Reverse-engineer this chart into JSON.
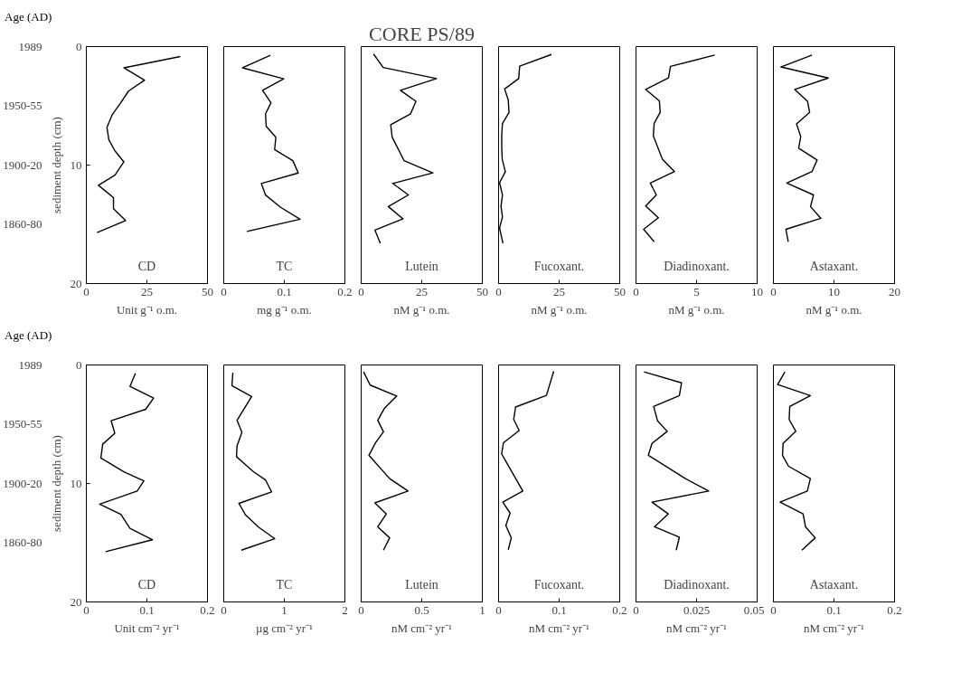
{
  "chart_data": [
    {
      "type": "line",
      "xlabel": "Unit g⁻¹ o.m.",
      "ylabel": "sediment depth (cm)",
      "y2label": "Age (AD)",
      "annotations": [
        "CD",
        "1989",
        "1950-55",
        "1900-20",
        "1860-80"
      ],
      "xlim": [
        0,
        50
      ],
      "xticks": [
        0,
        25,
        50
      ],
      "ylim": [
        20,
        0
      ],
      "yticks": [
        0,
        10,
        20
      ],
      "series": [
        {
          "color": "#000000",
          "x": [
            38.8,
            15.5,
            24,
            17.4,
            14,
            10.6,
            8.5,
            9.3,
            11.8,
            15.5,
            11.8,
            5,
            11.2,
            11.2,
            16.2,
            4.4
          ],
          "values": [
            0.84,
            1.79,
            2.83,
            3.76,
            4.8,
            5.78,
            6.83,
            7.87,
            8.8,
            9.73,
            10.85,
            11.71,
            12.75,
            13.68,
            14.68,
            15.7
          ]
        }
      ]
    },
    {
      "type": "line",
      "xlabel": "mg g⁻¹ o.m.",
      "annotations": [
        "TC"
      ],
      "xlim": [
        0,
        0.2
      ],
      "xticks": [
        0,
        0.1,
        0.2
      ],
      "ylim": [
        20,
        0
      ],
      "tick_labels": "x",
      "series": [
        {
          "color": "#000000",
          "x": [
            0.077,
            0.031,
            0.099,
            0.064,
            0.078,
            0.069,
            0.07,
            0.086,
            0.084,
            0.114,
            0.123,
            0.062,
            0.069,
            0.094,
            0.126,
            0.038
          ],
          "values": [
            0.74,
            1.79,
            2.72,
            3.69,
            4.74,
            5.67,
            6.72,
            7.65,
            8.7,
            9.63,
            10.67,
            11.55,
            12.53,
            13.57,
            14.57,
            15.6
          ]
        }
      ]
    },
    {
      "type": "line",
      "title": "CORE PS/89",
      "xlabel": "nM g⁻¹ o.m.",
      "annotations": [
        "Lutein"
      ],
      "xlim": [
        0,
        50
      ],
      "xticks": [
        0,
        25,
        50
      ],
      "ylim": [
        20,
        0
      ],
      "tick_labels": "x",
      "series": [
        {
          "color": "#000000",
          "x": [
            5.1,
            9.1,
            31.1,
            16.2,
            22.6,
            20.4,
            12.2,
            12.8,
            17.7,
            29.6,
            13,
            19.5,
            11.2,
            17.3,
            5.7,
            7.9
          ],
          "values": [
            0.63,
            1.77,
            2.7,
            3.69,
            4.62,
            5.67,
            6.6,
            7.64,
            9.62,
            10.66,
            11.55,
            12.52,
            13.5,
            14.54,
            15.49,
            16.6
          ]
        }
      ]
    },
    {
      "type": "line",
      "xlabel": "nM g⁻¹ o.m.",
      "annotations": [
        "Fucoxant."
      ],
      "xlim": [
        0,
        50
      ],
      "xticks": [
        0,
        25,
        50
      ],
      "ylim": [
        20,
        0
      ],
      "tick_labels": "x",
      "series": [
        {
          "color": "#000000",
          "x": [
            21.8,
            8.7,
            8.3,
            2.5,
            4,
            4.3,
            1.6,
            1.3,
            1.3,
            1.5,
            2.8,
            0.4,
            1.6,
            1,
            1.6,
            0.4,
            1.8
          ],
          "values": [
            0.67,
            1.65,
            2.7,
            3.58,
            4.51,
            5.56,
            6.49,
            7.42,
            8.47,
            9.51,
            10.56,
            11.49,
            12.53,
            13.46,
            14.39,
            15.32,
            16.6
          ]
        }
      ]
    },
    {
      "type": "line",
      "xlabel": "nM g⁻¹ o.m.",
      "annotations": [
        "Diadinoxant."
      ],
      "xlim": [
        0,
        10
      ],
      "xticks": [
        0,
        5,
        10
      ],
      "ylim": [
        20,
        0
      ],
      "tick_labels": "x",
      "series": [
        {
          "color": "#000000",
          "x": [
            6.5,
            2.85,
            2.68,
            0.8,
            1.93,
            2,
            1.5,
            1.43,
            2.18,
            3.18,
            1.18,
            1.68,
            0.8,
            1.85,
            0.63,
            1.5
          ],
          "values": [
            0.72,
            1.67,
            2.65,
            3.62,
            4.58,
            5.55,
            6.48,
            7.53,
            9.5,
            10.55,
            11.52,
            12.52,
            13.45,
            14.45,
            15.42,
            16.47
          ]
        }
      ]
    },
    {
      "type": "line",
      "xlabel": "nM g⁻¹ o.m.",
      "annotations": [
        "Astaxant."
      ],
      "xlim": [
        0,
        20
      ],
      "xticks": [
        0,
        10,
        20
      ],
      "ylim": [
        20,
        0
      ],
      "tick_labels": "x",
      "series": [
        {
          "color": "#000000",
          "x": [
            6.37,
            1.23,
            9.07,
            3.53,
            5.64,
            5.98,
            3.82,
            4.51,
            4.17,
            7.21,
            6.37,
            2.21,
            6.62,
            6.13,
            7.84,
            2.06,
            2.45
          ],
          "values": [
            0.72,
            1.72,
            2.65,
            3.62,
            4.62,
            5.55,
            6.53,
            7.6,
            8.58,
            9.57,
            10.55,
            11.52,
            12.52,
            13.5,
            14.5,
            15.42,
            16.47
          ]
        }
      ]
    },
    {
      "type": "line",
      "xlabel": "Unit cm⁻² yr⁻¹",
      "ylabel": "sediment depth (cm)",
      "y2label": "Age (AD)",
      "annotations": [
        "CD",
        "1989",
        "1950-55",
        "1900-20",
        "1860-80"
      ],
      "xlim": [
        0,
        0.2
      ],
      "xticks": [
        0,
        0.1,
        0.2
      ],
      "ylim": [
        20,
        0
      ],
      "yticks": [
        0,
        10,
        20
      ],
      "series": [
        {
          "color": "#000000",
          "x": [
            0.081,
            0.072,
            0.111,
            0.098,
            0.041,
            0.047,
            0.027,
            0.024,
            0.062,
            0.095,
            0.084,
            0.022,
            0.057,
            0.072,
            0.109,
            0.032
          ],
          "values": [
            0.7,
            1.81,
            2.79,
            3.74,
            4.71,
            5.76,
            6.69,
            7.85,
            9.01,
            9.78,
            10.64,
            11.75,
            12.61,
            13.78,
            14.75,
            15.75
          ]
        }
      ]
    },
    {
      "type": "line",
      "xlabel": "µg cm⁻² yr⁻¹",
      "annotations": [
        "TC"
      ],
      "xlim": [
        0,
        2
      ],
      "xticks": [
        0,
        1,
        2
      ],
      "ylim": [
        20,
        0
      ],
      "tick_labels": "x",
      "series": [
        {
          "color": "#000000",
          "x": [
            0.15,
            0.135,
            0.46,
            0.22,
            0.3,
            0.22,
            0.21,
            0.49,
            0.69,
            0.79,
            0.25,
            0.36,
            0.57,
            0.84,
            0.29
          ],
          "values": [
            0.65,
            1.74,
            2.67,
            4.67,
            5.69,
            6.81,
            7.74,
            9.01,
            9.71,
            10.71,
            11.68,
            12.66,
            13.66,
            14.66,
            15.63
          ]
        }
      ]
    },
    {
      "type": "line",
      "xlabel": "nM cm⁻² yr⁻¹",
      "annotations": [
        "Lutein"
      ],
      "xlim": [
        0,
        1
      ],
      "xticks": [
        0,
        0.5,
        1
      ],
      "ylim": [
        20,
        0
      ],
      "tick_labels": "x",
      "series": [
        {
          "color": "#000000",
          "x": [
            0.02,
            0.074,
            0.294,
            0.191,
            0.137,
            0.184,
            0.118,
            0.064,
            0.235,
            0.387,
            0.113,
            0.208,
            0.137,
            0.235,
            0.184
          ],
          "values": [
            0.58,
            1.7,
            2.62,
            3.67,
            4.67,
            5.64,
            6.57,
            7.62,
            9.59,
            10.64,
            11.64,
            12.57,
            13.66,
            14.59,
            15.63
          ]
        }
      ]
    },
    {
      "type": "line",
      "xlabel": "nM cm⁻² yr⁻¹",
      "annotations": [
        "Fucoxant."
      ],
      "xlim": [
        0,
        0.2
      ],
      "xticks": [
        0,
        0.1,
        0.2
      ],
      "ylim": [
        20,
        0
      ],
      "tick_labels": "x",
      "series": [
        {
          "color": "#000000",
          "x": [
            0.091,
            0.079,
            0.028,
            0.025,
            0.034,
            0.008,
            0.005,
            0.04,
            0.007,
            0.019,
            0.012,
            0.021,
            0.016
          ],
          "values": [
            0.53,
            2.57,
            3.55,
            4.6,
            5.53,
            6.57,
            7.5,
            10.64,
            11.57,
            12.5,
            13.55,
            14.59,
            15.59
          ]
        }
      ]
    },
    {
      "type": "line",
      "xlabel": "nM cm⁻² yr⁻¹",
      "annotations": [
        "Diadinoxant."
      ],
      "xlim": [
        0,
        0.05
      ],
      "xticks": [
        0,
        0.025,
        0.05
      ],
      "ylim": [
        20,
        0
      ],
      "tick_labels": "x",
      "series": [
        {
          "color": "#000000",
          "x": [
            0.0033,
            0.0188,
            0.0179,
            0.0073,
            0.0089,
            0.0129,
            0.0066,
            0.0051,
            0.0204,
            0.03,
            0.0066,
            0.0133,
            0.0076,
            0.0179,
            0.0166
          ],
          "values": [
            0.58,
            1.51,
            2.58,
            3.51,
            4.72,
            5.6,
            6.62,
            7.62,
            9.59,
            10.64,
            11.57,
            12.57,
            13.66,
            14.54,
            15.63
          ]
        }
      ]
    },
    {
      "type": "line",
      "xlabel": "nM cm⁻² yr⁻¹",
      "annotations": [
        "Astaxant."
      ],
      "xlim": [
        0,
        0.2
      ],
      "xticks": [
        0,
        0.1,
        0.2
      ],
      "ylim": [
        20,
        0
      ],
      "tick_labels": "x",
      "series": [
        {
          "color": "#000000",
          "x": [
            0.019,
            0.007,
            0.061,
            0.027,
            0.026,
            0.037,
            0.016,
            0.015,
            0.025,
            0.061,
            0.056,
            0.011,
            0.049,
            0.053,
            0.069,
            0.047
          ],
          "values": [
            0.58,
            1.65,
            2.58,
            3.51,
            4.6,
            5.6,
            6.62,
            7.62,
            8.55,
            9.59,
            10.64,
            11.57,
            12.57,
            13.66,
            14.59,
            15.63
          ]
        }
      ]
    }
  ]
}
